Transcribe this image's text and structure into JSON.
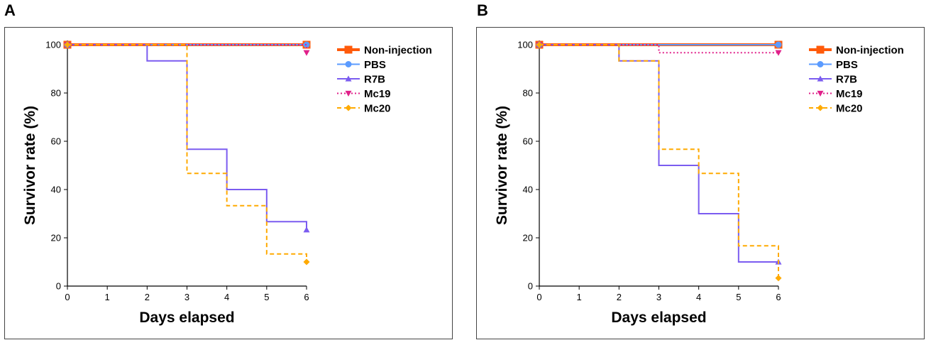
{
  "panels": {
    "a": {
      "letter": "A"
    },
    "b": {
      "letter": "B"
    }
  },
  "colors": {
    "non_injection": "#ff5a0a",
    "pbs": "#5b9bff",
    "r7b": "#7b5cf0",
    "mc19": "#e0218a",
    "mc20": "#ffaa00"
  },
  "chart_data": [
    {
      "panel": "A",
      "type": "line",
      "subtype": "kaplan-meier-step",
      "xlabel": "Days elapsed",
      "ylabel": "Survivor rate (%)",
      "xlim": [
        0,
        6
      ],
      "ylim": [
        0,
        100
      ],
      "xticks": [
        0,
        1,
        2,
        3,
        4,
        5,
        6
      ],
      "yticks": [
        0,
        20,
        40,
        60,
        80,
        100
      ],
      "legend_position": "top-right",
      "series": [
        {
          "key": "non_injection",
          "name": "Non-injection",
          "marker": "square",
          "dash": "solid",
          "x": [
            0,
            6
          ],
          "y": [
            100,
            100
          ]
        },
        {
          "key": "pbs",
          "name": "PBS",
          "marker": "circle",
          "dash": "solid",
          "x": [
            0,
            6
          ],
          "y": [
            100,
            100
          ]
        },
        {
          "key": "r7b",
          "name": "R7B",
          "marker": "triangle-up",
          "dash": "solid",
          "x": [
            0,
            2,
            3,
            4,
            5,
            6
          ],
          "y": [
            100,
            93.3,
            56.7,
            40,
            26.7,
            23.3
          ]
        },
        {
          "key": "mc19",
          "name": "Mc19",
          "marker": "triangle-down",
          "dash": "dotted",
          "x": [
            0,
            6
          ],
          "y": [
            100,
            96.7
          ]
        },
        {
          "key": "mc20",
          "name": "Mc20",
          "marker": "diamond",
          "dash": "dashed",
          "x": [
            0,
            3,
            4,
            5,
            6
          ],
          "y": [
            100,
            46.7,
            33.3,
            13.3,
            10
          ]
        }
      ]
    },
    {
      "panel": "B",
      "type": "line",
      "subtype": "kaplan-meier-step",
      "xlabel": "Days elapsed",
      "ylabel": "Survivor rate (%)",
      "xlim": [
        0,
        6
      ],
      "ylim": [
        0,
        100
      ],
      "xticks": [
        0,
        1,
        2,
        3,
        4,
        5,
        6
      ],
      "yticks": [
        0,
        20,
        40,
        60,
        80,
        100
      ],
      "legend_position": "top-right",
      "series": [
        {
          "key": "non_injection",
          "name": "Non-injection",
          "marker": "square",
          "dash": "solid",
          "x": [
            0,
            6
          ],
          "y": [
            100,
            100
          ]
        },
        {
          "key": "pbs",
          "name": "PBS",
          "marker": "circle",
          "dash": "solid",
          "x": [
            0,
            6
          ],
          "y": [
            100,
            100
          ]
        },
        {
          "key": "r7b",
          "name": "R7B",
          "marker": "triangle-up",
          "dash": "solid",
          "x": [
            0,
            2,
            3,
            4,
            5,
            6
          ],
          "y": [
            100,
            93.3,
            50,
            30,
            10,
            10
          ]
        },
        {
          "key": "mc19",
          "name": "Mc19",
          "marker": "triangle-down",
          "dash": "dotted",
          "x": [
            0,
            3,
            6
          ],
          "y": [
            100,
            96.7,
            96.7
          ]
        },
        {
          "key": "mc20",
          "name": "Mc20",
          "marker": "diamond",
          "dash": "dashed",
          "x": [
            0,
            2,
            3,
            4,
            5,
            6
          ],
          "y": [
            100,
            93.3,
            56.7,
            46.7,
            16.7,
            3.3
          ]
        }
      ]
    }
  ]
}
